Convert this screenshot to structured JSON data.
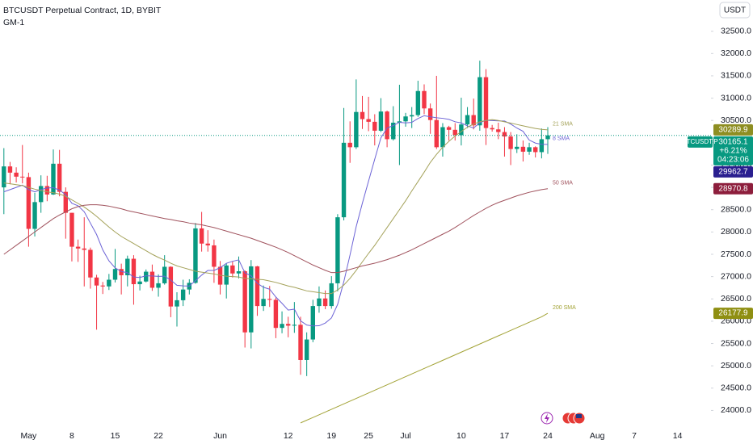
{
  "chart_data": {
    "type": "candlestick",
    "title": "BTCUSDT Perpetual Contract, 1D, BYBIT",
    "subtitle": "GM-1",
    "currency": "USDT",
    "symbol_label": "BTCUSDT.P",
    "change_label": "+6.21%",
    "countdown": "04:23:06",
    "up_color": "#089981",
    "down_color": "#f23645",
    "grid": false,
    "categories": [
      null,
      null,
      null,
      null,
      "May",
      null,
      null,
      null,
      null,
      null,
      null,
      "8",
      null,
      null,
      null,
      null,
      null,
      null,
      "15",
      null,
      null,
      null,
      null,
      null,
      null,
      "22",
      null,
      null,
      null,
      null,
      null,
      null,
      null,
      null,
      null,
      "Jun",
      null,
      null,
      null,
      null,
      null,
      null,
      null,
      null,
      null,
      null,
      "12",
      null,
      null,
      null,
      null,
      null,
      null,
      "19",
      null,
      null,
      null,
      null,
      null,
      "25",
      null,
      null,
      null,
      null,
      null,
      "Jul",
      null,
      null,
      null,
      null,
      null,
      null,
      null,
      null,
      "10",
      null,
      null,
      null,
      null,
      null,
      null,
      "17",
      null,
      null,
      null,
      null,
      null,
      null,
      "24",
      null,
      null,
      null,
      null,
      null,
      null,
      null,
      "Aug",
      null,
      null,
      null,
      null,
      null,
      "7",
      null,
      null,
      null,
      null,
      null,
      null,
      "14"
    ],
    "open": [
      29000,
      29470,
      29330,
      29240,
      29230,
      28070,
      28670,
      29030,
      28840,
      29530,
      28900,
      28430,
      27670,
      27630,
      27600,
      26980,
      26800,
      26780,
      26930,
      27170,
      27030,
      27400,
      26830,
      26890,
      27110,
      26750,
      26850,
      27220,
      26330,
      26470,
      26710,
      26860,
      28080,
      27740,
      27700,
      27220,
      26820,
      27250,
      27070,
      27120,
      25750,
      27230,
      26340,
      26500,
      26480,
      25850,
      25940,
      25900,
      25920,
      25130,
      25590,
      26340,
      26510,
      26340,
      26850,
      28330,
      30000,
      29900,
      30690,
      30530,
      30470,
      30270,
      30700,
      30080,
      30450,
      30480,
      30590,
      30620,
      31160,
      30770,
      30510,
      29900,
      30350,
      30290,
      30170,
      30410,
      30620,
      30390,
      31470,
      30330,
      30300,
      30240,
      30140,
      29860,
      29910,
      29800,
      29900,
      29790,
      30080,
      null,
      null,
      null,
      null,
      null,
      null,
      null,
      null,
      null,
      null,
      null,
      null,
      null,
      null,
      null,
      null,
      null,
      null,
      null,
      null,
      null
    ],
    "high": [
      29880,
      29570,
      29450,
      29950,
      29330,
      28880,
      29270,
      29260,
      29850,
      29840,
      29000,
      28430,
      27830,
      28330,
      27650,
      27040,
      26880,
      27060,
      27620,
      27290,
      27470,
      27480,
      27020,
      27160,
      27270,
      27050,
      27480,
      27230,
      26650,
      26930,
      26940,
      28200,
      28450,
      28040,
      27830,
      27350,
      27300,
      27340,
      27450,
      27140,
      27370,
      27240,
      26800,
      26790,
      26530,
      26220,
      26100,
      26430,
      26100,
      25750,
      26480,
      26780,
      26690,
      27010,
      28400,
      30780,
      30480,
      31420,
      31050,
      31030,
      30640,
      31000,
      30720,
      30820,
      31300,
      30670,
      30800,
      31390,
      31310,
      30880,
      31500,
      30440,
      30380,
      30440,
      31010,
      30800,
      30990,
      31840,
      31650,
      30400,
      30450,
      30350,
      30240,
      30190,
      30050,
      30000,
      29920,
      30320,
      30350,
      null,
      null,
      null,
      null,
      null,
      null,
      null,
      null,
      null,
      null,
      null,
      null,
      null,
      null,
      null,
      null,
      null,
      null,
      null,
      null,
      null
    ],
    "low": [
      28400,
      29070,
      29110,
      29090,
      27670,
      27900,
      28430,
      28690,
      28830,
      28800,
      27850,
      27340,
      27330,
      26780,
      26730,
      25810,
      26610,
      26700,
      26870,
      26600,
      26780,
      26370,
      26690,
      26870,
      26680,
      26550,
      26820,
      26090,
      25880,
      26340,
      26600,
      26840,
      27560,
      27560,
      26860,
      26600,
      26510,
      26980,
      26960,
      25410,
      25390,
      26120,
      26230,
      26320,
      25620,
      25730,
      25640,
      25740,
      24800,
      24770,
      25530,
      26190,
      26270,
      26280,
      26670,
      28260,
      29550,
      29860,
      30310,
      30260,
      29940,
      30240,
      29900,
      30050,
      29500,
      30360,
      30330,
      30580,
      30640,
      30200,
      29860,
      29690,
      30050,
      30050,
      29940,
      30330,
      30300,
      30270,
      29950,
      30250,
      30080,
      29690,
      29500,
      29770,
      29580,
      29730,
      29670,
      29650,
      29750,
      null,
      null,
      null,
      null,
      null,
      null,
      null,
      null,
      null,
      null,
      null,
      null,
      null,
      null,
      null,
      null,
      null,
      null,
      null,
      null,
      null
    ],
    "close": [
      29470,
      29330,
      29240,
      29230,
      28070,
      28670,
      29030,
      28840,
      29530,
      28900,
      28430,
      27670,
      27630,
      27600,
      26980,
      26800,
      26780,
      26930,
      27170,
      27030,
      27400,
      26830,
      26890,
      27110,
      26750,
      26850,
      27220,
      26330,
      26470,
      26710,
      26860,
      28080,
      27740,
      27700,
      27220,
      26820,
      27250,
      27070,
      27120,
      25750,
      27230,
      26340,
      26500,
      26480,
      25850,
      25940,
      25900,
      25920,
      25130,
      25590,
      26340,
      26510,
      26340,
      26850,
      28330,
      30000,
      29900,
      30690,
      30530,
      30470,
      30270,
      30700,
      30080,
      30450,
      30480,
      30590,
      30620,
      31160,
      30770,
      30510,
      29900,
      30350,
      30290,
      30170,
      30410,
      30620,
      30390,
      31470,
      30330,
      30300,
      30240,
      30140,
      29860,
      29910,
      29800,
      29900,
      29790,
      30080,
      30165.1,
      null,
      null,
      null,
      null,
      null,
      null,
      null,
      null,
      null,
      null,
      null,
      null,
      null,
      null,
      null,
      null,
      null,
      null,
      null,
      null,
      null
    ],
    "series": [
      {
        "name": "8 SMA",
        "color": "#6c63d6",
        "label_color": "#2a1f8f",
        "values": [
          28900,
          28950,
          29000,
          29050,
          28950,
          28900,
          28950,
          28985,
          28993,
          28939,
          28838,
          28643,
          28588,
          28454,
          28198,
          27943,
          27599,
          27353,
          27195,
          27115,
          27086,
          26990,
          26979,
          27018,
          27014,
          27004,
          27010,
          26923,
          26806,
          26791,
          26788,
          26909,
          27033,
          27139,
          27139,
          27200,
          27298,
          27343,
          27375,
          27084,
          27020,
          26850,
          26760,
          26718,
          26543,
          26401,
          26249,
          26270,
          26008,
          25914,
          25894,
          25898,
          25959,
          26073,
          26376,
          26886,
          27483,
          28120,
          28644,
          29139,
          29630,
          30111,
          30330,
          30386,
          30459,
          30446,
          30458,
          30544,
          30606,
          30583,
          30560,
          30548,
          30524,
          30471,
          30445,
          30378,
          30330,
          30450,
          30504,
          30498,
          30491,
          30488,
          30419,
          30330,
          30256,
          30060,
          29993,
          29965,
          29962.7,
          null,
          null,
          null,
          null,
          null,
          null,
          null,
          null,
          null,
          null,
          null,
          null,
          null,
          null,
          null,
          null,
          null,
          null,
          null,
          null,
          null
        ]
      },
      {
        "name": "21 SMA",
        "color": "#a4a25a",
        "label_color": "#8e8e22",
        "values": [
          29100,
          29080,
          29060,
          29040,
          29000,
          28960,
          28930,
          28900,
          28880,
          28850,
          28800,
          28720,
          28640,
          28560,
          28460,
          28350,
          28230,
          28110,
          28000,
          27900,
          27820,
          27740,
          27660,
          27580,
          27500,
          27430,
          27370,
          27300,
          27240,
          27200,
          27160,
          27120,
          27100,
          27080,
          27060,
          27030,
          27010,
          27000,
          26990,
          26960,
          26950,
          26940,
          26930,
          26900,
          26870,
          26830,
          26790,
          26760,
          26720,
          26680,
          26660,
          26640,
          26620,
          26620,
          26700,
          26810,
          26960,
          27140,
          27330,
          27520,
          27700,
          27900,
          28100,
          28300,
          28500,
          28700,
          28920,
          29130,
          29340,
          29560,
          29740,
          29900,
          30030,
          30150,
          30250,
          30350,
          30420,
          30470,
          30500,
          30520,
          30500,
          30470,
          30440,
          30410,
          30380,
          30350,
          30320,
          30300,
          30289.9,
          null,
          null,
          null,
          null,
          null,
          null,
          null,
          null,
          null,
          null,
          null,
          null,
          null,
          null,
          null,
          null,
          null,
          null,
          null,
          null,
          null
        ]
      },
      {
        "name": "50 SMA",
        "color": "#a0525d",
        "label_color": "#8d1e3c",
        "values": [
          27500,
          27600,
          27700,
          27800,
          27900,
          28000,
          28100,
          28200,
          28300,
          28380,
          28450,
          28520,
          28570,
          28600,
          28610,
          28610,
          28600,
          28580,
          28550,
          28520,
          28480,
          28450,
          28420,
          28390,
          28360,
          28330,
          28300,
          28280,
          28250,
          28230,
          28200,
          28180,
          28160,
          28130,
          28100,
          28060,
          28020,
          27980,
          27940,
          27900,
          27860,
          27810,
          27760,
          27710,
          27660,
          27600,
          27540,
          27470,
          27400,
          27330,
          27260,
          27200,
          27140,
          27090,
          27090,
          27120,
          27160,
          27200,
          27240,
          27270,
          27300,
          27340,
          27380,
          27430,
          27480,
          27540,
          27600,
          27670,
          27740,
          27810,
          27880,
          27950,
          28020,
          28100,
          28190,
          28280,
          28370,
          28450,
          28530,
          28600,
          28660,
          28710,
          28760,
          28810,
          28850,
          28890,
          28920,
          28950,
          28970.8,
          null,
          null,
          null,
          null,
          null,
          null,
          null,
          null,
          null,
          null,
          null,
          null,
          null,
          null,
          null,
          null,
          null,
          null,
          null,
          null,
          null
        ]
      },
      {
        "name": "200 SMA",
        "color": "#a3a336",
        "label_color": "#8f8f12",
        "values": [
          null,
          null,
          null,
          null,
          null,
          null,
          null,
          null,
          null,
          null,
          null,
          null,
          null,
          null,
          null,
          null,
          null,
          null,
          null,
          null,
          null,
          null,
          null,
          null,
          null,
          null,
          null,
          null,
          null,
          null,
          null,
          null,
          null,
          null,
          null,
          null,
          null,
          null,
          null,
          null,
          null,
          null,
          null,
          null,
          null,
          null,
          null,
          null,
          23720,
          23781,
          23842,
          23903,
          23964,
          24025,
          24086,
          24147,
          24208,
          24269,
          24330,
          24391,
          24452,
          24513,
          24574,
          24635,
          24696,
          24757,
          24818,
          24879,
          24940,
          25001,
          25062,
          25123,
          25184,
          25245,
          25306,
          25367,
          25428,
          25489,
          25550,
          25611,
          25672,
          25733,
          25794,
          25855,
          25916,
          25977,
          26038,
          26099,
          26177.9,
          null,
          null,
          null,
          null,
          null,
          null,
          null,
          null,
          null,
          null,
          null,
          null,
          null,
          null,
          null,
          null,
          null,
          null,
          null,
          null,
          null
        ]
      }
    ],
    "ylim": [
      23700,
      33200
    ],
    "yticks": [
      {
        "value": 24000,
        "label": "24000.0"
      },
      {
        "value": 24500,
        "label": "24500.0"
      },
      {
        "value": 25000,
        "label": "25000.0"
      },
      {
        "value": 25500,
        "label": "25500.0"
      },
      {
        "value": 26000,
        "label": "26000.0"
      },
      {
        "value": 26500,
        "label": "26500.0"
      },
      {
        "value": 27000,
        "label": "27000.0"
      },
      {
        "value": 27500,
        "label": "27500.0"
      },
      {
        "value": 28000,
        "label": "28000.0"
      },
      {
        "value": 28500,
        "label": "28500.0"
      },
      {
        "value": 29000,
        "label": "29000.0"
      },
      {
        "value": 29500,
        "label": "29500.0"
      },
      {
        "value": 30000,
        "label": "30000.0"
      },
      {
        "value": 30500,
        "label": "30500.0"
      },
      {
        "value": 31000,
        "label": "31000.0"
      },
      {
        "value": 31500,
        "label": "31500.0"
      },
      {
        "value": 32000,
        "label": "32000.0"
      },
      {
        "value": 32500,
        "label": "32500.0"
      }
    ]
  }
}
